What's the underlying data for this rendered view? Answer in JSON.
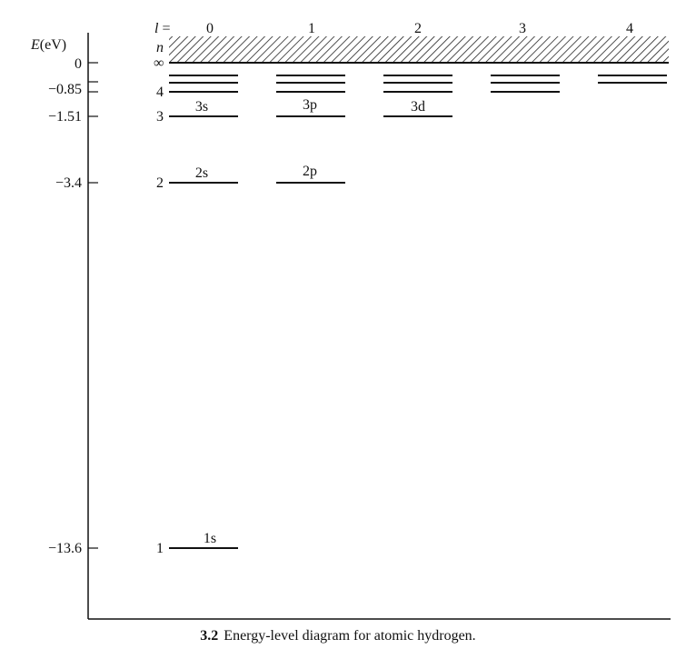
{
  "axis": {
    "label_italic": "E",
    "label_unit": "(eV)",
    "ticks": [
      {
        "label": "0",
        "value": 0
      },
      {
        "label": "−0.85",
        "value": -0.85
      },
      {
        "label": "−1.51",
        "value": -1.51
      },
      {
        "label": "−3.4",
        "value": -3.4
      },
      {
        "label": "−13.6",
        "value": -13.6
      }
    ]
  },
  "header": {
    "l_symbol": "l",
    "l_equals": " =",
    "l_values": [
      "0",
      "1",
      "2",
      "3",
      "4"
    ],
    "n_symbol": "n",
    "infinity": "∞"
  },
  "n_labels": [
    "4",
    "3",
    "2",
    "1"
  ],
  "levels": [
    {
      "label": "1s",
      "n": 1,
      "l": 0
    },
    {
      "label": "2s",
      "n": 2,
      "l": 0
    },
    {
      "label": "2p",
      "n": 2,
      "l": 1
    },
    {
      "label": "3s",
      "n": 3,
      "l": 0
    },
    {
      "label": "3p",
      "n": 3,
      "l": 1
    },
    {
      "label": "3d",
      "n": 3,
      "l": 2
    }
  ],
  "caption": {
    "number": "3.2",
    "text": "Energy-level diagram for atomic hydrogen."
  }
}
